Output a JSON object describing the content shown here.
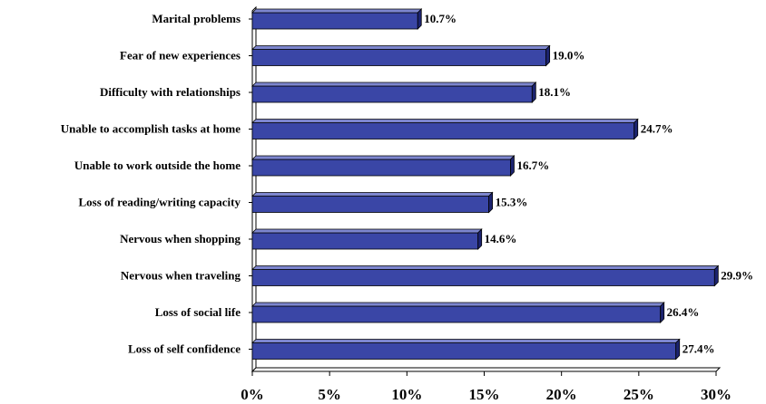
{
  "chart_data": {
    "type": "bar",
    "orientation": "horizontal",
    "title": "",
    "xlabel": "",
    "ylabel": "",
    "categories": [
      "Marital problems",
      "Fear of new experiences",
      "Difficulty with relationships",
      "Unable to accomplish tasks at home",
      "Unable to work outside the home",
      "Loss of reading/writing capacity",
      "Nervous when shopping",
      "Nervous when traveling",
      "Loss of social life",
      "Loss of self confidence"
    ],
    "values": [
      10.7,
      19.0,
      18.1,
      24.7,
      16.7,
      15.3,
      14.6,
      29.9,
      26.4,
      27.4
    ],
    "value_labels": [
      "10.7%",
      "19.0%",
      "18.1%",
      "24.7%",
      "16.7%",
      "15.3%",
      "14.6%",
      "29.9%",
      "26.4%",
      "27.4%"
    ],
    "xlim": [
      0,
      30
    ],
    "x_ticks": [
      0,
      5,
      10,
      15,
      20,
      25,
      30
    ],
    "x_tick_labels": [
      "0%",
      "5%",
      "10%",
      "15%",
      "20%",
      "25%",
      "30%"
    ],
    "grid": false,
    "legend": "none",
    "style": "3d",
    "colors": {
      "bar_front": "#3a46a6",
      "bar_top": "#7d86cf",
      "bar_side": "#1c2470",
      "axis": "#000000"
    }
  }
}
